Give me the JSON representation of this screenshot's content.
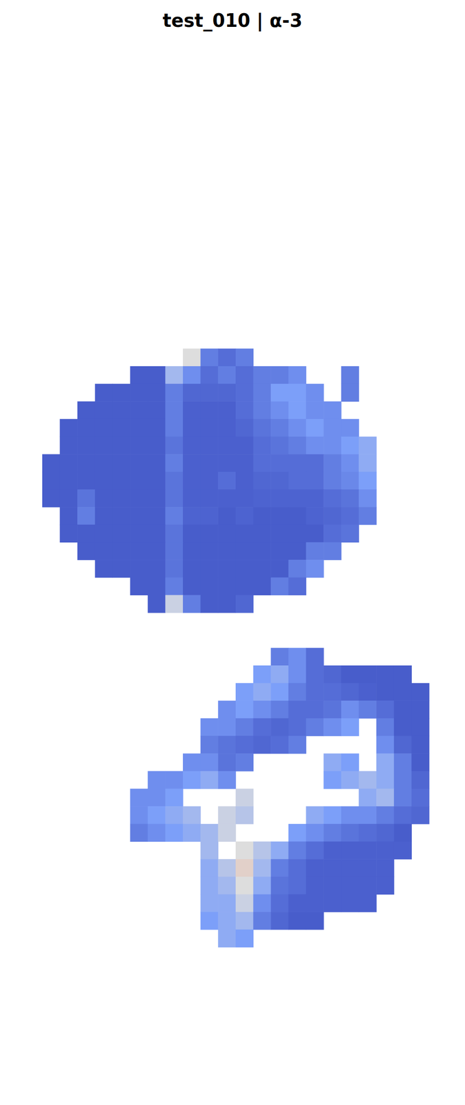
{
  "chart_data": {
    "type": "heatmap",
    "title": "test_010 | α-3",
    "tick_labels": false,
    "zlim": [
      0,
      1
    ],
    "cells": [
      [
        null,
        null,
        null,
        null,
        null,
        null,
        null,
        null,
        0.5,
        0.15,
        0.1,
        0.15,
        null,
        null,
        null,
        null,
        null,
        null,
        null,
        null,
        null,
        null,
        null
      ],
      [
        null,
        null,
        null,
        null,
        null,
        0.05,
        0.05,
        0.35,
        0.2,
        0.1,
        0.15,
        0.1,
        0.15,
        0.15,
        0.2,
        null,
        null,
        0.15,
        null,
        null,
        null,
        null,
        null
      ],
      [
        null,
        null,
        null,
        0.05,
        0.05,
        0.05,
        0.05,
        0.15,
        0.08,
        0.08,
        0.08,
        0.1,
        0.15,
        0.25,
        0.25,
        0.2,
        null,
        0.15,
        null,
        null,
        null,
        null,
        null
      ],
      [
        null,
        null,
        0.05,
        0.05,
        0.05,
        0.05,
        0.05,
        0.15,
        0.06,
        0.06,
        0.06,
        0.1,
        0.15,
        0.2,
        0.25,
        0.2,
        0.2,
        null,
        null,
        null,
        null,
        null,
        null
      ],
      [
        null,
        0.05,
        0.05,
        0.05,
        0.05,
        0.05,
        0.05,
        0.15,
        0.06,
        0.06,
        0.06,
        0.08,
        0.12,
        0.15,
        0.2,
        0.25,
        0.2,
        0.2,
        null,
        null,
        null,
        null,
        null
      ],
      [
        null,
        0.05,
        0.05,
        0.05,
        0.05,
        0.05,
        0.05,
        0.12,
        0.06,
        0.06,
        0.06,
        0.06,
        0.1,
        0.12,
        0.15,
        0.2,
        0.2,
        0.25,
        0.3,
        null,
        null,
        null,
        null
      ],
      [
        0.05,
        0.05,
        0.05,
        0.05,
        0.05,
        0.05,
        0.05,
        0.15,
        0.06,
        0.06,
        0.06,
        0.06,
        0.1,
        0.1,
        0.1,
        0.1,
        0.15,
        0.2,
        0.3,
        null,
        null,
        null,
        null
      ],
      [
        0.05,
        0.05,
        0.05,
        0.05,
        0.05,
        0.05,
        0.05,
        0.12,
        0.06,
        0.06,
        0.1,
        0.06,
        0.08,
        0.08,
        0.1,
        0.1,
        0.15,
        0.18,
        0.25,
        null,
        null,
        null,
        null
      ],
      [
        0.05,
        0.05,
        0.12,
        0.05,
        0.05,
        0.05,
        0.05,
        0.12,
        0.06,
        0.06,
        0.06,
        0.06,
        0.07,
        0.07,
        0.07,
        0.07,
        0.1,
        0.12,
        0.2,
        null,
        null,
        null,
        null
      ],
      [
        null,
        0.05,
        0.15,
        0.05,
        0.05,
        0.05,
        0.05,
        0.15,
        0.07,
        0.07,
        0.05,
        0.07,
        0.05,
        0.05,
        0.05,
        0.07,
        0.08,
        0.1,
        0.15,
        null,
        null,
        null,
        null
      ],
      [
        null,
        0.05,
        0.05,
        0.05,
        0.05,
        0.05,
        0.05,
        0.12,
        0.05,
        0.05,
        0.05,
        0.05,
        0.05,
        0.05,
        0.05,
        0.05,
        0.1,
        0.12,
        null,
        null,
        null,
        null,
        null
      ],
      [
        null,
        null,
        0.05,
        0.05,
        0.05,
        0.05,
        0.05,
        0.12,
        0.05,
        0.05,
        0.05,
        0.05,
        0.05,
        0.05,
        0.05,
        0.15,
        0.15,
        null,
        null,
        null,
        null,
        null,
        null
      ],
      [
        null,
        null,
        null,
        0.05,
        0.05,
        0.05,
        0.05,
        0.12,
        0.05,
        0.05,
        0.05,
        0.05,
        0.05,
        0.05,
        0.15,
        0.2,
        null,
        null,
        null,
        null,
        null,
        null,
        null
      ],
      [
        null,
        null,
        null,
        null,
        null,
        0.05,
        0.05,
        0.15,
        0.05,
        0.05,
        0.05,
        0.05,
        0.05,
        0.15,
        0.1,
        null,
        null,
        null,
        null,
        null,
        null,
        null,
        null
      ],
      [
        null,
        null,
        null,
        null,
        null,
        null,
        0.05,
        0.45,
        0.15,
        0.05,
        0.05,
        0.08,
        null,
        null,
        null,
        null,
        null,
        null,
        null,
        null,
        null,
        null,
        null
      ],
      [
        null,
        null,
        null,
        null,
        null,
        null,
        null,
        null,
        null,
        null,
        null,
        null,
        null,
        null,
        null,
        null,
        null,
        null,
        null,
        null,
        null,
        null,
        null
      ],
      [
        null,
        null,
        null,
        null,
        null,
        null,
        null,
        null,
        null,
        null,
        null,
        null,
        null,
        null,
        null,
        null,
        null,
        null,
        null,
        null,
        null,
        null,
        null
      ],
      [
        null,
        null,
        null,
        null,
        null,
        null,
        null,
        null,
        null,
        null,
        null,
        null,
        null,
        0.15,
        0.2,
        0.1,
        null,
        null,
        null,
        null,
        null,
        null,
        null
      ],
      [
        null,
        null,
        null,
        null,
        null,
        null,
        null,
        null,
        null,
        null,
        null,
        null,
        0.25,
        0.3,
        0.2,
        0.1,
        0.08,
        0.05,
        0.05,
        0.05,
        0.05,
        null,
        null
      ],
      [
        null,
        null,
        null,
        null,
        null,
        null,
        null,
        null,
        null,
        null,
        null,
        0.25,
        0.3,
        0.25,
        0.15,
        0.1,
        0.1,
        0.08,
        0.06,
        0.05,
        0.05,
        0.05,
        null
      ],
      [
        null,
        null,
        null,
        null,
        null,
        null,
        null,
        null,
        null,
        null,
        0.2,
        0.25,
        0.2,
        0.15,
        0.1,
        0.1,
        0.12,
        0.2,
        0.15,
        0.1,
        0.05,
        0.05,
        null
      ],
      [
        null,
        null,
        null,
        null,
        null,
        null,
        null,
        null,
        null,
        0.2,
        0.2,
        0.15,
        0.1,
        0.08,
        0.1,
        0.15,
        0.2,
        0.25,
        null,
        0.15,
        0.05,
        0.05,
        null
      ],
      [
        null,
        null,
        null,
        null,
        null,
        null,
        null,
        null,
        null,
        0.15,
        0.12,
        0.1,
        0.08,
        0.1,
        0.15,
        null,
        null,
        null,
        null,
        0.2,
        0.08,
        0.05,
        null
      ],
      [
        null,
        null,
        null,
        null,
        null,
        null,
        null,
        null,
        0.2,
        0.2,
        0.12,
        0.15,
        null,
        null,
        null,
        null,
        0.3,
        0.25,
        null,
        0.3,
        0.15,
        0.05,
        null
      ],
      [
        null,
        null,
        null,
        null,
        null,
        null,
        0.2,
        0.2,
        0.25,
        0.3,
        0.2,
        null,
        null,
        null,
        null,
        null,
        0.25,
        0.3,
        0.35,
        0.3,
        0.15,
        0.08,
        null
      ],
      [
        null,
        null,
        null,
        null,
        null,
        0.2,
        0.2,
        0.25,
        null,
        null,
        null,
        0.45,
        null,
        null,
        null,
        null,
        null,
        null,
        0.3,
        0.35,
        0.15,
        0.1,
        null
      ],
      [
        null,
        null,
        null,
        null,
        null,
        0.2,
        0.25,
        0.3,
        0.35,
        null,
        0.45,
        0.4,
        null,
        null,
        null,
        0.3,
        0.25,
        0.2,
        0.2,
        0.15,
        0.1,
        0.08,
        null
      ],
      [
        null,
        null,
        null,
        null,
        null,
        0.15,
        0.2,
        0.25,
        0.3,
        0.35,
        0.45,
        null,
        null,
        null,
        0.25,
        0.2,
        0.15,
        0.12,
        0.1,
        0.08,
        0.05,
        null,
        null
      ],
      [
        null,
        null,
        null,
        null,
        null,
        null,
        null,
        null,
        null,
        0.35,
        null,
        0.5,
        0.4,
        0.3,
        0.15,
        0.1,
        0.06,
        0.06,
        0.06,
        0.06,
        0.06,
        null,
        null
      ],
      [
        null,
        null,
        null,
        null,
        null,
        null,
        null,
        null,
        null,
        0.3,
        0.4,
        0.55,
        0.35,
        0.15,
        0.1,
        0.06,
        0.06,
        0.06,
        0.06,
        0.06,
        null,
        null,
        null
      ],
      [
        null,
        null,
        null,
        null,
        null,
        null,
        null,
        null,
        null,
        0.3,
        0.35,
        0.5,
        0.3,
        0.12,
        0.1,
        0.06,
        0.06,
        0.06,
        0.06,
        0.06,
        null,
        null,
        null
      ],
      [
        null,
        null,
        null,
        null,
        null,
        null,
        null,
        null,
        null,
        0.3,
        0.3,
        0.45,
        0.2,
        0.1,
        0.06,
        0.06,
        0.06,
        0.06,
        0.06,
        null,
        null,
        null,
        null
      ],
      [
        null,
        null,
        null,
        null,
        null,
        null,
        null,
        null,
        null,
        0.25,
        0.3,
        0.35,
        0.15,
        0.08,
        0.05,
        0.05,
        null,
        null,
        null,
        null,
        null,
        null,
        null
      ],
      [
        null,
        null,
        null,
        null,
        null,
        null,
        null,
        null,
        null,
        null,
        0.3,
        0.25,
        null,
        null,
        null,
        null,
        null,
        null,
        null,
        null,
        null,
        null,
        null
      ]
    ]
  }
}
